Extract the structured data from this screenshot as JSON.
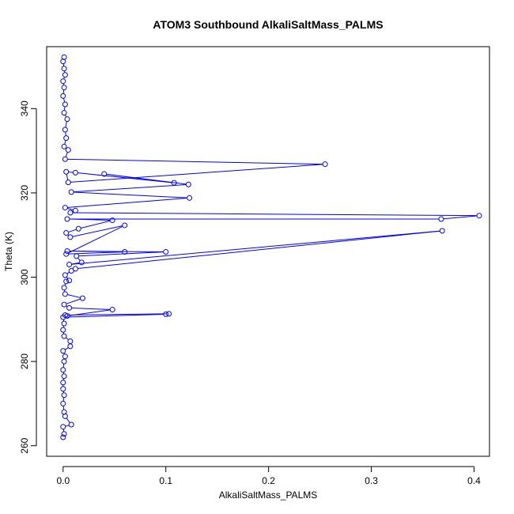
{
  "chart_data": {
    "type": "line",
    "title": "ATOM3 Southbound AlkaliSaltMass_PALMS",
    "xlabel": "AlkaliSaltMass_PALMS",
    "ylabel": "Theta (K)",
    "xlim": [
      -0.016,
      0.415
    ],
    "ylim": [
      257.5,
      354.7
    ],
    "xticks": [
      0,
      0.1,
      0.2,
      0.3,
      0.4
    ],
    "xtick_labels": [
      "0.0",
      "0.1",
      "0.2",
      "0.3",
      "0.4"
    ],
    "yticks": [
      260,
      280,
      300,
      320,
      340
    ],
    "ytick_labels": [
      "260",
      "280",
      "300",
      "320",
      "340"
    ],
    "grid": false,
    "line_color": "#0000ff",
    "marker": "open-circle",
    "series": [
      {
        "values": [
          [
            0,
            262
          ],
          [
            0.001,
            262.8
          ],
          [
            0,
            264.5
          ],
          [
            0.008,
            265
          ],
          [
            0.002,
            267
          ],
          [
            0.001,
            268
          ],
          [
            0,
            270
          ],
          [
            0.001,
            272
          ],
          [
            0,
            273.5
          ],
          [
            0,
            275
          ],
          [
            0.001,
            276.5
          ],
          [
            0,
            278
          ],
          [
            0.001,
            280
          ],
          [
            0.002,
            281.2
          ],
          [
            0,
            282.5
          ],
          [
            0.007,
            283.6
          ],
          [
            0.007,
            284.8
          ],
          [
            0.001,
            286
          ],
          [
            0,
            287.5
          ],
          [
            0.001,
            289
          ],
          [
            0,
            290.5
          ],
          [
            0.1,
            291.2
          ],
          [
            0.103,
            291.3
          ],
          [
            0.002,
            291
          ],
          [
            0.004,
            290.8
          ],
          [
            0.048,
            292.3
          ],
          [
            0.006,
            292.7
          ],
          [
            0.001,
            293.5
          ],
          [
            0.019,
            295
          ],
          [
            0.002,
            296
          ],
          [
            0.001,
            297.5
          ],
          [
            0.003,
            299
          ],
          [
            0.006,
            299.2
          ],
          [
            0.002,
            300.5
          ],
          [
            0.008,
            301.5
          ],
          [
            0.012,
            302
          ],
          [
            0.369,
            311
          ],
          [
            0.006,
            303
          ],
          [
            0.018,
            303.5
          ],
          [
            0.013,
            305
          ],
          [
            0.1,
            306
          ],
          [
            0.004,
            306.2
          ],
          [
            0.06,
            306
          ],
          [
            0.003,
            305.5
          ],
          [
            0.06,
            312.3
          ],
          [
            0.007,
            309.5
          ],
          [
            0.003,
            310.5
          ],
          [
            0.015,
            311.5
          ],
          [
            0.048,
            313.5
          ],
          [
            0.004,
            313.8
          ],
          [
            0.368,
            313.8
          ],
          [
            0.405,
            314.6
          ],
          [
            0.007,
            315.3
          ],
          [
            0.012,
            315.8
          ],
          [
            0.002,
            316.5
          ],
          [
            0.123,
            318.8
          ],
          [
            0.008,
            320.2
          ],
          [
            0.122,
            322
          ],
          [
            0.04,
            324.5
          ],
          [
            0.108,
            322.4
          ],
          [
            0.012,
            324.8
          ],
          [
            0.003,
            325
          ],
          [
            0.005,
            322.5
          ],
          [
            0.255,
            326.8
          ],
          [
            0.002,
            328
          ],
          [
            0.005,
            330.2
          ],
          [
            0.001,
            331
          ],
          [
            0.003,
            333
          ],
          [
            0.002,
            335
          ],
          [
            0.004,
            337.5
          ],
          [
            0.001,
            339
          ],
          [
            0.002,
            341
          ],
          [
            0,
            343
          ],
          [
            0.001,
            345
          ],
          [
            0,
            346.5
          ],
          [
            0.002,
            348
          ],
          [
            0.001,
            349.5
          ],
          [
            0,
            351.2
          ],
          [
            0.001,
            352.2
          ]
        ]
      }
    ]
  }
}
